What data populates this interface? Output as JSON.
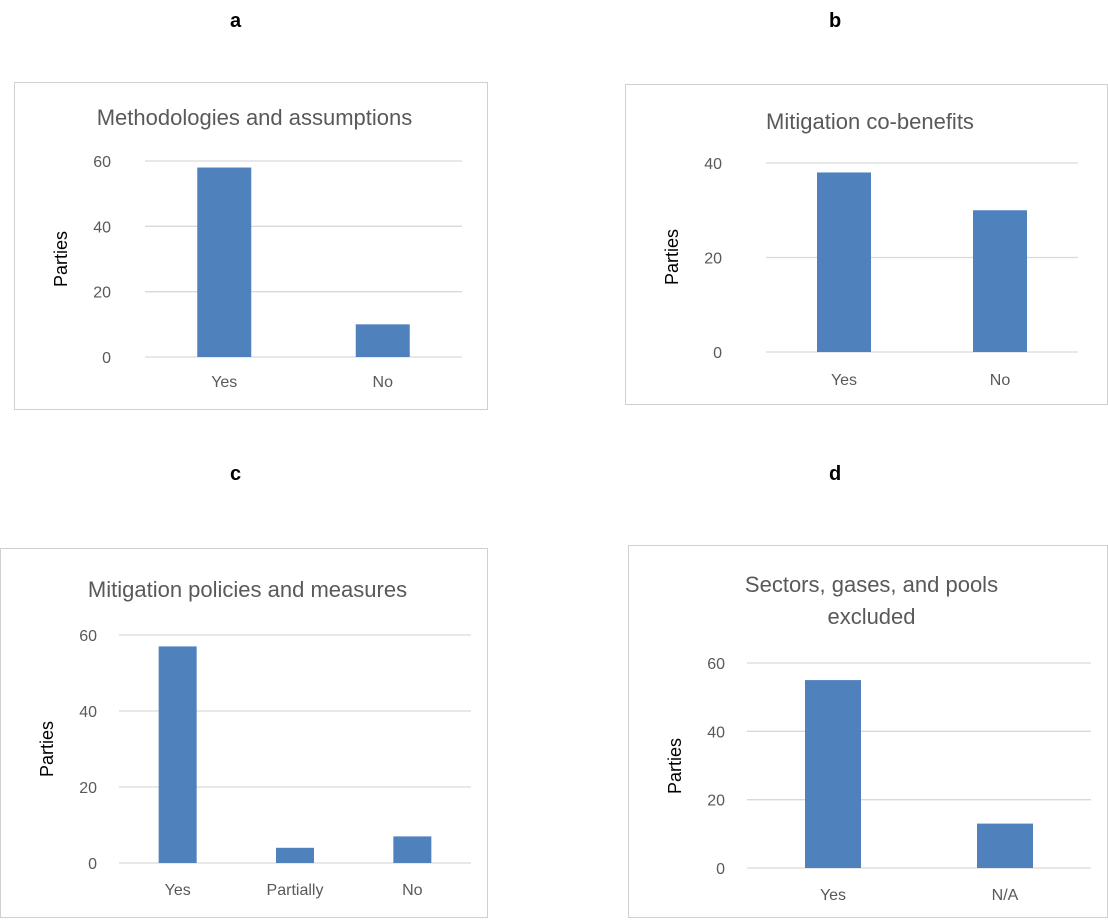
{
  "panels": [
    {
      "letter": "a"
    },
    {
      "letter": "b"
    },
    {
      "letter": "c"
    },
    {
      "letter": "d"
    }
  ],
  "bar_color": "#4f81bd",
  "grid_color": "#d9d9d9",
  "chart_data": [
    {
      "type": "bar",
      "title": "Methodologies and assumptions",
      "ylabel": "Parties",
      "xlabel": "",
      "categories": [
        "Yes",
        "No"
      ],
      "values": [
        58,
        10
      ],
      "ylim": [
        0,
        60
      ],
      "yticks": [
        "0",
        "20",
        "40",
        "60"
      ],
      "grid": true
    },
    {
      "type": "bar",
      "title": "Mitigation co-benefits",
      "ylabel": "Parties",
      "xlabel": "",
      "categories": [
        "Yes",
        "No"
      ],
      "values": [
        38,
        30
      ],
      "ylim": [
        0,
        40
      ],
      "yticks": [
        "0",
        "20",
        "40"
      ],
      "grid": true
    },
    {
      "type": "bar",
      "title": "Mitigation policies and measures",
      "ylabel": "Parties",
      "xlabel": "",
      "categories": [
        "Yes",
        "Partially",
        "No"
      ],
      "values": [
        57,
        4,
        7
      ],
      "ylim": [
        0,
        60
      ],
      "yticks": [
        "0",
        "20",
        "40",
        "60"
      ],
      "grid": true
    },
    {
      "type": "bar",
      "title": "Sectors, gases, and pools excluded",
      "title_lines": [
        "Sectors, gases, and pools",
        "excluded"
      ],
      "ylabel": "Parties",
      "xlabel": "",
      "categories": [
        "Yes",
        "N/A"
      ],
      "values": [
        55,
        13
      ],
      "ylim": [
        0,
        60
      ],
      "yticks": [
        "0",
        "20",
        "40",
        "60"
      ],
      "grid": true
    }
  ]
}
